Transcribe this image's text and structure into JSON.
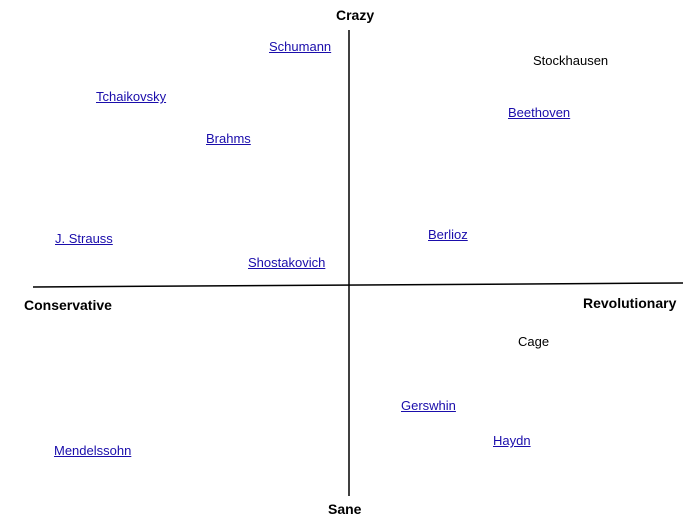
{
  "axes": {
    "top": "Crazy",
    "bottom": "Sane",
    "left": "Conservative",
    "right": "Revolutionary"
  },
  "composers": [
    "Schumann",
    "Stockhausen",
    "Tchaikovsky",
    "Beethoven",
    "Brahms",
    "J. Strauss",
    "Berlioz",
    "Shostakovich",
    "Cage",
    "Gerswhin",
    "Haydn",
    "Mendelssohn"
  ]
}
